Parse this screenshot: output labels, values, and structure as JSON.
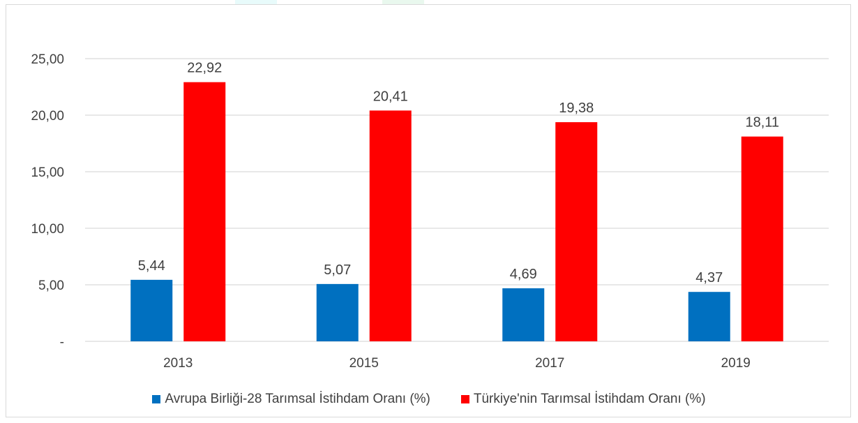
{
  "chart_data": {
    "type": "bar",
    "categories": [
      "2013",
      "2015",
      "2017",
      "2019"
    ],
    "series": [
      {
        "name": "Avrupa Birliği-28 Tarımsal İstihdam Oranı (%)",
        "color": "#0070c0",
        "values": [
          5.44,
          5.07,
          4.69,
          4.37
        ],
        "labels": [
          "5,44",
          "5,07",
          "4,69",
          "4,37"
        ]
      },
      {
        "name": "Türkiye'nin Tarımsal İstihdam Oranı (%)",
        "color": "#ff0000",
        "values": [
          22.92,
          20.41,
          19.38,
          18.11
        ],
        "labels": [
          "22,92",
          "20,41",
          "19,38",
          "18,11"
        ]
      }
    ],
    "yticks": [
      0,
      5,
      10,
      15,
      20,
      25
    ],
    "ytick_labels": [
      "-",
      "5,00",
      "10,00",
      "15,00",
      "20,00",
      "25,00"
    ],
    "ylim": [
      0,
      25
    ],
    "grid": true,
    "legend_position": "bottom",
    "gridline_color": "#d9d9d9"
  }
}
